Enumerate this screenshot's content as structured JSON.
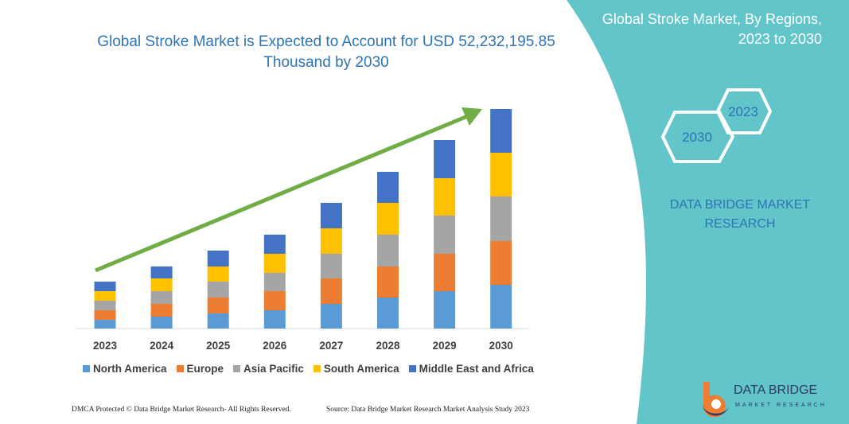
{
  "title": "Global Stroke Market is Expected to Account for USD 52,232,195.85 Thousand by 2030",
  "side_panel": {
    "title_line1": "Global Stroke Market, By Regions,",
    "title_line2": "2023 to 2030",
    "hex_2023": "2023",
    "hex_2030": "2030",
    "brand_line1": "DATA BRIDGE MARKET",
    "brand_line2": "RESEARCH",
    "color": "#62C5C9"
  },
  "footer": {
    "left": "DMCA Protected © Data Bridge Market Research-  All Rights Reserved.",
    "right": "Source: Data Bridge Market Research  Market Analysis Study 2023"
  },
  "logo": {
    "name": "DATA BRIDGE",
    "sub": "MARKET RESEARCH"
  },
  "chart_data": {
    "type": "bar",
    "stacked": true,
    "categories": [
      "2023",
      "2024",
      "2025",
      "2026",
      "2027",
      "2028",
      "2029",
      "2030"
    ],
    "series": [
      {
        "name": "North America",
        "color": "#5B9BD5",
        "values": [
          11,
          15,
          19,
          23,
          31,
          39,
          47,
          55
        ]
      },
      {
        "name": "Europe",
        "color": "#ED7D31",
        "values": [
          12,
          16,
          20,
          24,
          32,
          39,
          47,
          55
        ]
      },
      {
        "name": "Asia Pacific",
        "color": "#A5A5A5",
        "values": [
          12,
          16,
          20,
          23,
          31,
          40,
          48,
          56
        ]
      },
      {
        "name": "South America",
        "color": "#FFC000",
        "values": [
          12,
          16,
          19,
          24,
          32,
          40,
          47,
          55
        ]
      },
      {
        "name": "Middle East and Africa",
        "color": "#4472C4",
        "values": [
          12,
          15,
          20,
          24,
          32,
          39,
          48,
          55
        ]
      }
    ],
    "trend_arrow_color": "#70AD47",
    "y_axis_shown": false,
    "grid": false,
    "legend_position": "bottom"
  }
}
